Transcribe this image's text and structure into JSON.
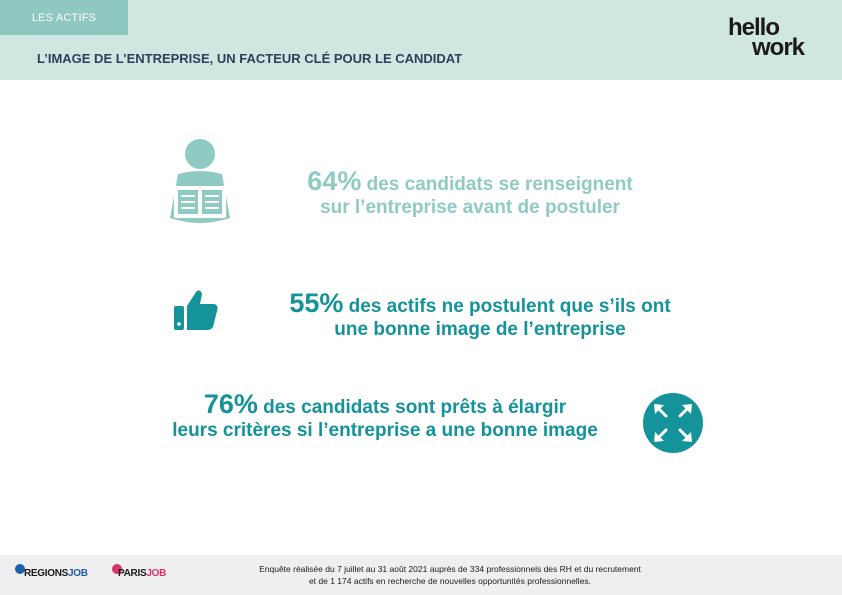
{
  "header": {
    "section_tag": "LES ACTIFS",
    "title": "L’IMAGE DE L’ENTREPRISE, UN FACTEUR CLÉ POUR LE CANDIDAT",
    "logo_line1": "hello",
    "logo_line2": "work"
  },
  "stats": [
    {
      "pct": "64%",
      "text_a": " des candidats se renseignent",
      "text_b": "sur l’entreprise avant de postuler",
      "icon": "reading-person-icon"
    },
    {
      "pct": "55%",
      "text_a": " des actifs ne postulent que s’ils ont",
      "text_b": "une bonne image de l’entreprise",
      "icon": "thumbs-up-icon"
    },
    {
      "pct": "76%",
      "text_a": " des candidats sont prêts à élargir",
      "text_b": "leurs critères si l’entreprise a une bonne image",
      "icon": "expand-arrows-icon"
    }
  ],
  "footer": {
    "line1": "Enquête réalisée du 7 juillet au 31 août 2021 auprès de 334 professionnels des RH et du recrutement",
    "line2": "et de 1 174 actifs en recherche de nouvelles opportunités professionnelles.",
    "brand1_a": "REGIONS",
    "brand1_b": "JOB",
    "brand2_a": "PARIS",
    "brand2_b": "JOB"
  },
  "colors": {
    "header_bg": "#cfe6e1",
    "tag_bg": "#8ec8c0",
    "title": "#2e3f5c",
    "light_teal": "#8fcbc3",
    "dark_teal": "#14939a",
    "footer_bg": "#efefef"
  }
}
